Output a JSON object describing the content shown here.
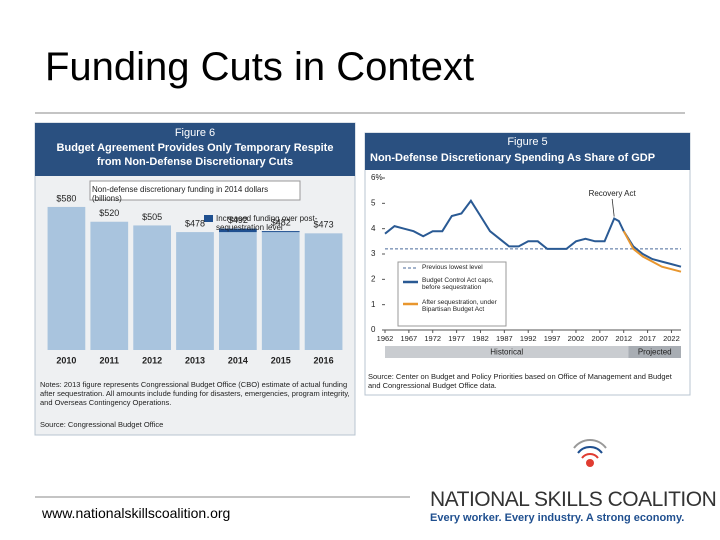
{
  "title": "Funding Cuts in Context",
  "footer": "www.nationalskillscoalition.org",
  "logo": {
    "name": "NATIONAL SKILLS COALITION",
    "tagline": "Every worker. Every industry. A strong economy."
  },
  "chart_data": [
    {
      "type": "bar",
      "label": "Figure 6",
      "title": "Budget Agreement Provides Only Temporary Respite from Non-Defense Discretionary Cuts",
      "subtitle": "Non-defense discretionary funding in 2014 dollars (billions)",
      "categories": [
        "2010",
        "2011",
        "2012",
        "2013",
        "2014",
        "2015",
        "2016"
      ],
      "values": [
        580,
        520,
        505,
        478,
        492,
        482,
        473
      ],
      "value_labels": [
        "$580",
        "$520",
        "$505",
        "$478",
        "$492",
        "$482",
        "$473"
      ],
      "color": "#a9c4de",
      "highlight": {
        "name": "Increased funding over post-sequestration level",
        "color": "#1f4f8f",
        "values": [
          null,
          null,
          null,
          null,
          14,
          4,
          null
        ]
      },
      "ylim": [
        0,
        600
      ],
      "notes": "Notes: 2013 figure represents Congressional Budget Office (CBO) estimate of actual funding after sequestration. All amounts include funding for disasters, emergencies, program integrity, and Overseas Contingency Operations.",
      "source": "Source: Congressional Budget Office"
    },
    {
      "type": "line",
      "label": "Figure 5",
      "title": "Non-Defense Discretionary Spending As Share of GDP",
      "x": [
        1962,
        1964,
        1966,
        1968,
        1970,
        1972,
        1974,
        1976,
        1978,
        1980,
        1982,
        1984,
        1986,
        1988,
        1990,
        1992,
        1994,
        1996,
        1998,
        2000,
        2002,
        2004,
        2006,
        2008,
        2010,
        2011,
        2012,
        2014,
        2016,
        2018,
        2020,
        2022,
        2024
      ],
      "series": [
        {
          "name": "Budget Control Act caps, before sequestration",
          "color": "#2a5a94",
          "values": [
            3.8,
            4.1,
            4.0,
            3.9,
            3.7,
            3.9,
            3.9,
            4.5,
            4.6,
            5.1,
            4.5,
            3.9,
            3.6,
            3.3,
            3.3,
            3.5,
            3.5,
            3.2,
            3.2,
            3.2,
            3.5,
            3.6,
            3.5,
            3.5,
            4.4,
            4.3,
            3.9,
            3.3,
            3.0,
            2.8,
            2.7,
            2.6,
            2.5
          ]
        },
        {
          "name": "After sequestration, under Bipartisan Budget Act",
          "color": "#e8962e",
          "values": [
            null,
            null,
            null,
            null,
            null,
            null,
            null,
            null,
            null,
            null,
            null,
            null,
            null,
            null,
            null,
            null,
            null,
            null,
            null,
            null,
            null,
            null,
            null,
            null,
            null,
            null,
            3.9,
            3.2,
            2.9,
            2.7,
            2.5,
            2.4,
            2.3
          ]
        }
      ],
      "reference_line": {
        "name": "Previous lowest level",
        "value": 3.2,
        "color": "#4a6a9a"
      },
      "xlim": [
        1962,
        2024
      ],
      "ylim": [
        0,
        6
      ],
      "xticks": [
        1962,
        1967,
        1972,
        1977,
        1982,
        1987,
        1992,
        1997,
        2002,
        2007,
        2012,
        2017,
        2022
      ],
      "yticks": [
        0,
        1,
        2,
        3,
        4,
        5,
        {
          "value": 6,
          "label": "6%"
        }
      ],
      "annotation": {
        "text": "Recovery Act",
        "x": 2010,
        "y": 4.4
      },
      "regions": [
        {
          "label": "Historical",
          "from": 1962,
          "to": 2013
        },
        {
          "label": "Projected",
          "from": 2013,
          "to": 2024
        }
      ],
      "source": "Source: Center on Budget and Policy Priorities based on Office of Management and Budget and Congressional Budget Office data."
    }
  ]
}
